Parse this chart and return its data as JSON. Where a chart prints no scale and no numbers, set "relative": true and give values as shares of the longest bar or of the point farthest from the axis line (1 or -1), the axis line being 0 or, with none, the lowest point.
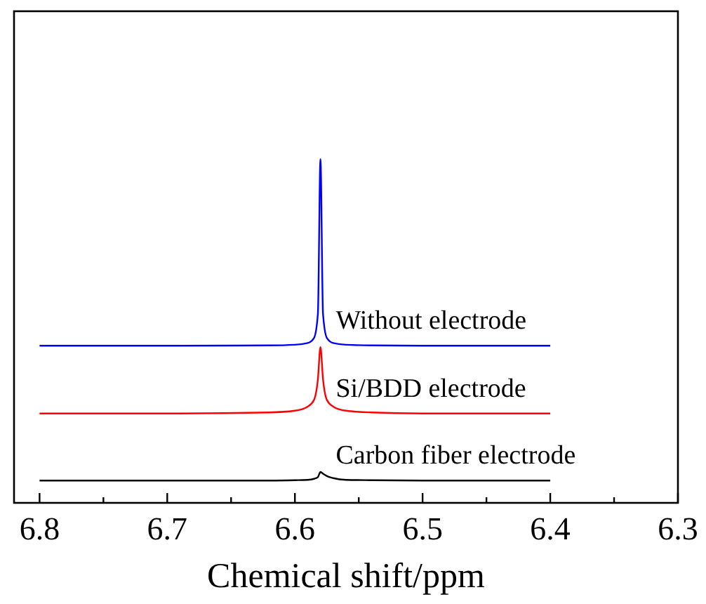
{
  "chart_data": {
    "type": "line",
    "xlabel": "Chemical shift/ppm",
    "relative": true,
    "xlim": [
      6.82,
      6.3
    ],
    "xticks": [
      6.8,
      {
        "value": 6.75,
        "label": null
      },
      6.7,
      {
        "value": 6.65,
        "label": null
      },
      6.6,
      {
        "value": 6.55,
        "label": null
      },
      6.5,
      {
        "value": 6.45,
        "label": null
      },
      6.4,
      {
        "value": 6.35,
        "label": null
      },
      6.3
    ],
    "x": [
      6.8,
      6.7,
      6.62,
      6.6,
      6.59,
      6.585,
      6.582,
      6.58,
      6.578,
      6.575,
      6.57,
      6.56,
      6.54,
      6.5,
      6.4
    ],
    "legend": false,
    "grid": false,
    "marker": "none",
    "line_style": "solid",
    "series": [
      {
        "name": "Without electrode",
        "color": "#0000ff",
        "values": [
          0.457,
          0.457,
          0.458,
          0.46,
          0.465,
          0.48,
          0.55,
          1.0,
          0.55,
          0.48,
          0.465,
          0.46,
          0.458,
          0.457,
          0.457
        ]
      },
      {
        "name": "Si/BDD electrode",
        "color": "#ff0000",
        "values": [
          0.26,
          0.26,
          0.263,
          0.268,
          0.28,
          0.3,
          0.36,
          0.453,
          0.36,
          0.3,
          0.28,
          0.268,
          0.263,
          0.26,
          0.26
        ]
      },
      {
        "name": "Carbon fiber electrode",
        "color": "#000000",
        "values": [
          0.065,
          0.065,
          0.065,
          0.066,
          0.067,
          0.07,
          0.075,
          0.09,
          0.085,
          0.078,
          0.072,
          0.067,
          0.066,
          0.065,
          0.065
        ]
      }
    ]
  }
}
